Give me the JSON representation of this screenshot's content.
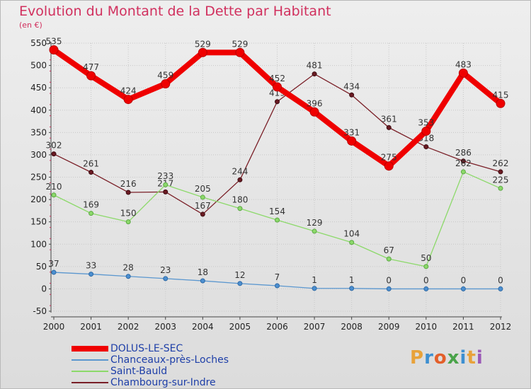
{
  "title": "Evolution du Montant de la Dette par Habitant",
  "unit": "(en €)",
  "logo": {
    "letters": [
      "P",
      "r",
      "o",
      "x",
      "i",
      "t",
      "i"
    ],
    "colors": [
      "#e8a23a",
      "#3d8fd1",
      "#e35f2a",
      "#4aa34a",
      "#3d8fd1",
      "#e8a23a",
      "#9b59b6"
    ]
  },
  "chart_data": {
    "type": "line",
    "title": "Evolution du Montant de la Dette par Habitant",
    "ylabel": "(en €)",
    "categories": [
      "2000",
      "2001",
      "2002",
      "2003",
      "2004",
      "2005",
      "2006",
      "2007",
      "2008",
      "2009",
      "2010",
      "2011",
      "2012"
    ],
    "ylim": [
      -50,
      550
    ],
    "yticks": [
      -50,
      0,
      50,
      100,
      150,
      200,
      250,
      300,
      350,
      400,
      450,
      500,
      550
    ],
    "grid": true,
    "series": [
      {
        "name": "Chambourg-sur-Indre",
        "color": "#7a1f27",
        "values": [
          302,
          261,
          216,
          217,
          167,
          244,
          419,
          481,
          434,
          361,
          318,
          286,
          262
        ],
        "labels": [
          "302",
          "261",
          "216",
          "217",
          "167",
          "244",
          "419",
          "481",
          "434",
          "361",
          "318",
          "286",
          "262"
        ]
      },
      {
        "name": "Saint-Bauld",
        "color": "#8cd96a",
        "values": [
          210,
          169,
          150,
          233,
          205,
          180,
          154,
          129,
          104,
          67,
          50,
          262,
          225
        ],
        "labels": [
          "210",
          "169",
          "150",
          "233",
          "205",
          "180",
          "154",
          "129",
          "104",
          "67",
          "50",
          "262",
          "225"
        ]
      },
      {
        "name": "Chanceaux-près-Loches",
        "color": "#5b97cf",
        "values": [
          37,
          33,
          28,
          23,
          18,
          12,
          7,
          1,
          1,
          0,
          0,
          0,
          0
        ],
        "labels": [
          "37",
          "33",
          "28",
          "23",
          "18",
          "12",
          "7",
          "1",
          "1",
          "0",
          "0",
          "0",
          "0"
        ]
      },
      {
        "name": "DOLUS-LE-SEC",
        "color": "#ef0000",
        "values": [
          535,
          477,
          424,
          459,
          529,
          529,
          452,
          396,
          331,
          275,
          353,
          483,
          415
        ],
        "labels": [
          "535",
          "477",
          "424",
          "459",
          "529",
          "529",
          "452",
          "396",
          "331",
          "275",
          "353",
          "483",
          "415"
        ]
      }
    ],
    "legend": [
      "DOLUS-LE-SEC",
      "Chanceaux-près-Loches",
      "Saint-Bauld",
      "Chambourg-sur-Indre"
    ]
  }
}
